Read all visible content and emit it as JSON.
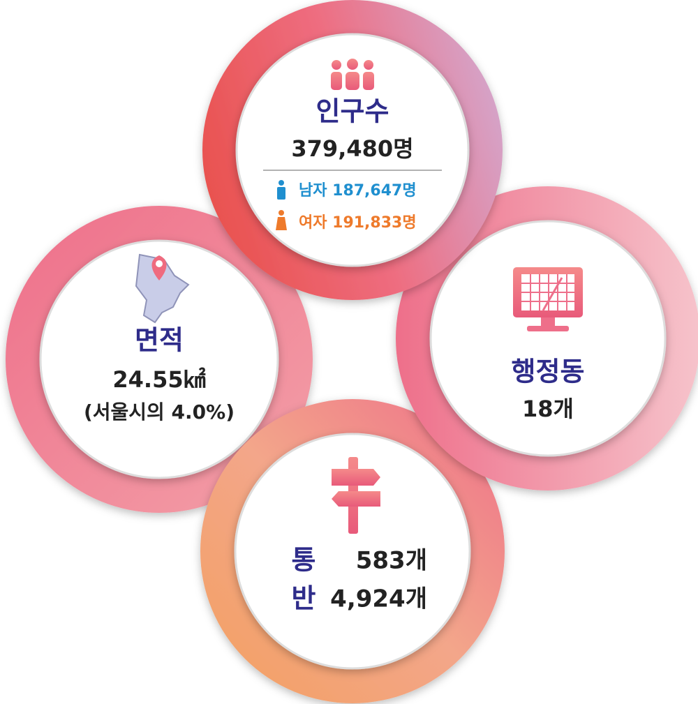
{
  "population": {
    "title": "인구수",
    "total": "379,480명",
    "male": "남자 187,647명",
    "female": "여자 191,833명"
  },
  "area": {
    "title": "면적",
    "value": "24.55㎢",
    "note": "(서울시의 4.0%)"
  },
  "dong": {
    "title": "행정동",
    "value": "18개"
  },
  "tongban": {
    "tong_label": "통",
    "tong_value": "583개",
    "ban_label": "반",
    "ban_value": "4,924개"
  }
}
